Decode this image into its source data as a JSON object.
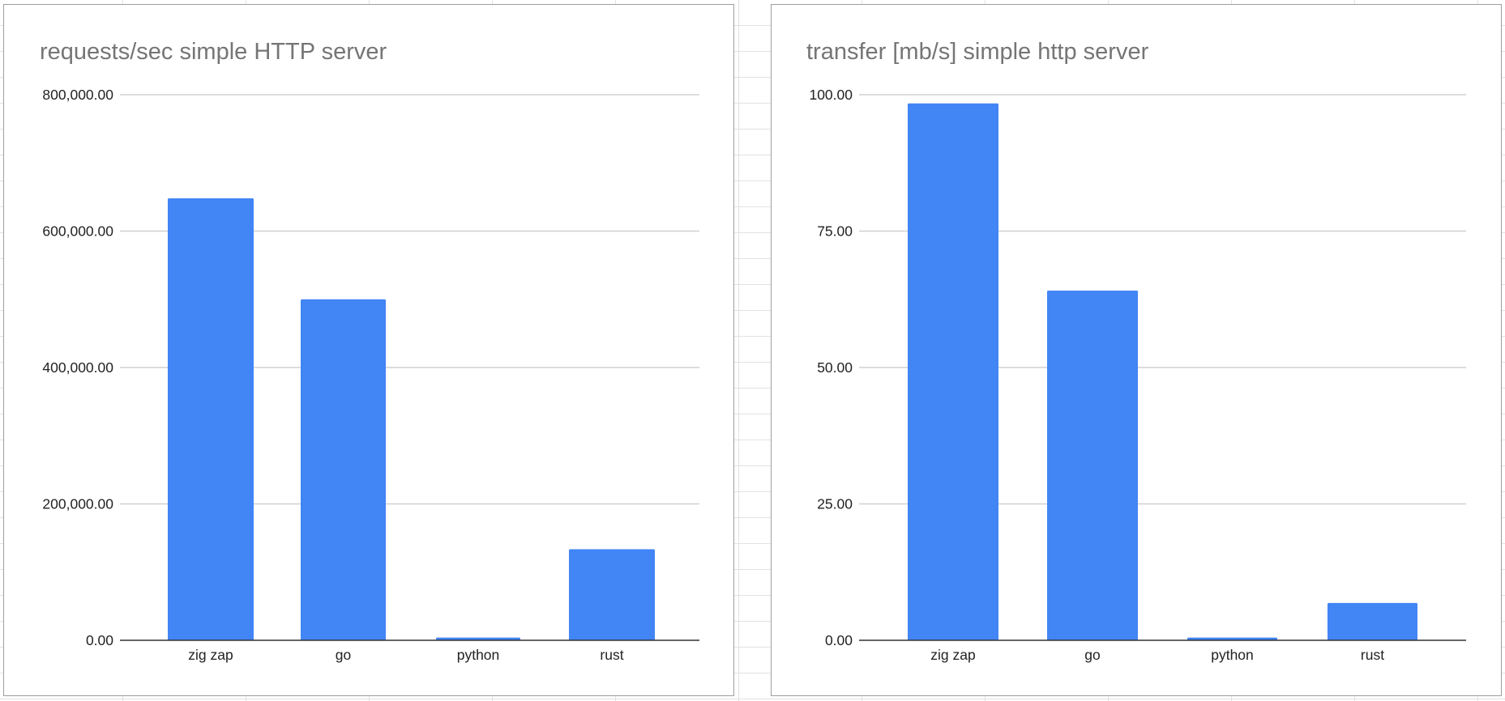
{
  "chart_data": [
    {
      "type": "bar",
      "title": "requests/sec simple HTTP server",
      "categories": [
        "zig zap",
        "go",
        "python",
        "rust"
      ],
      "values": [
        648000,
        500000,
        4000,
        133500
      ],
      "ylim": [
        0,
        800000
      ],
      "yticks": [
        "0.00",
        "200,000.00",
        "400,000.00",
        "600,000.00",
        "800,000.00"
      ],
      "ytick_values": [
        0,
        200000,
        400000,
        600000,
        800000
      ],
      "xlabel": "",
      "ylabel": "",
      "grid": true,
      "legend": "none",
      "color": "#4285f4"
    },
    {
      "type": "bar",
      "title": "transfer [mb/s] simple http server",
      "categories": [
        "zig zap",
        "go",
        "python",
        "rust"
      ],
      "values": [
        98.4,
        64.1,
        0.5,
        6.85
      ],
      "ylim": [
        0,
        100
      ],
      "yticks": [
        "0.00",
        "25.00",
        "50.00",
        "75.00",
        "100.00"
      ],
      "ytick_values": [
        0,
        25,
        50,
        75,
        100
      ],
      "xlabel": "",
      "ylabel": "",
      "grid": true,
      "legend": "none",
      "color": "#4285f4"
    }
  ]
}
